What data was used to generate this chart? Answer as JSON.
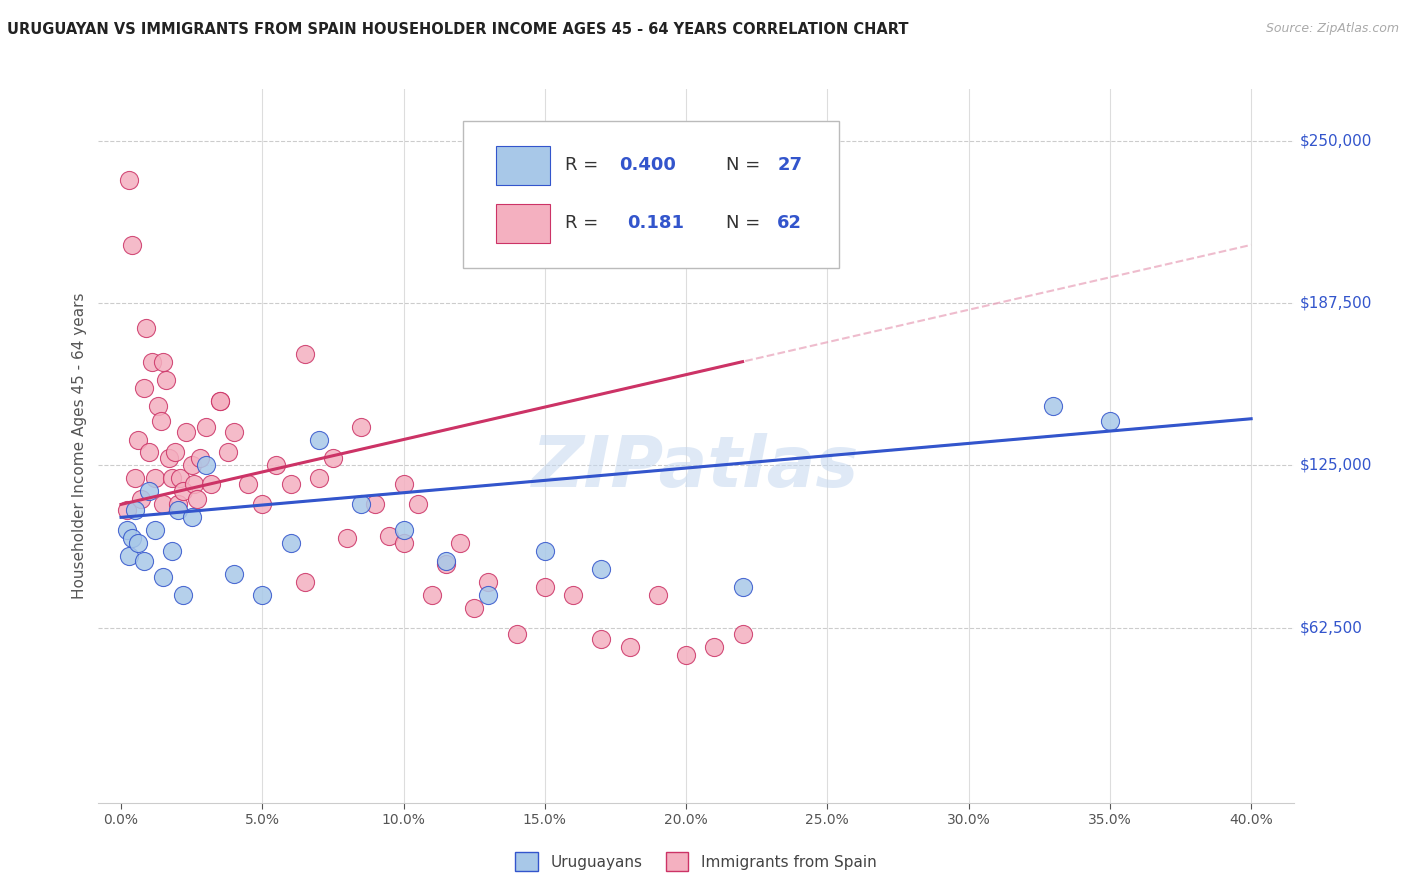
{
  "title": "URUGUAYAN VS IMMIGRANTS FROM SPAIN HOUSEHOLDER INCOME AGES 45 - 64 YEARS CORRELATION CHART",
  "source": "Source: ZipAtlas.com",
  "ylabel_label": "Householder Income Ages 45 - 64 years",
  "blue_color": "#a8c8e8",
  "pink_color": "#f4b0c0",
  "blue_line_color": "#3355cc",
  "pink_line_color": "#cc3366",
  "blue_dashed_color": "#aabbdd",
  "blue_r": "0.400",
  "blue_n": "27",
  "pink_r": "0.181",
  "pink_n": "62",
  "blue_intercept": 105000,
  "blue_slope": 950,
  "pink_intercept": 110000,
  "pink_slope": 2500,
  "uruguayan_x": [
    0.2,
    0.3,
    0.4,
    0.5,
    0.6,
    0.8,
    1.0,
    1.2,
    1.5,
    1.8,
    2.0,
    2.2,
    2.5,
    3.0,
    4.0,
    5.0,
    6.0,
    7.0,
    8.5,
    10.0,
    11.5,
    13.0,
    15.0,
    17.0,
    22.0,
    33.0,
    35.0
  ],
  "uruguayan_y": [
    100000,
    90000,
    97000,
    108000,
    95000,
    88000,
    115000,
    100000,
    82000,
    92000,
    108000,
    75000,
    105000,
    125000,
    83000,
    75000,
    95000,
    135000,
    110000,
    100000,
    88000,
    75000,
    92000,
    85000,
    78000,
    148000,
    142000
  ],
  "spain_x": [
    0.2,
    0.3,
    0.4,
    0.5,
    0.6,
    0.7,
    0.8,
    0.9,
    1.0,
    1.1,
    1.2,
    1.3,
    1.4,
    1.5,
    1.6,
    1.7,
    1.8,
    1.9,
    2.0,
    2.1,
    2.2,
    2.3,
    2.5,
    2.6,
    2.7,
    2.8,
    3.0,
    3.2,
    3.5,
    3.8,
    4.0,
    4.5,
    5.0,
    5.5,
    6.0,
    6.5,
    7.0,
    7.5,
    8.0,
    8.5,
    9.0,
    9.5,
    10.0,
    10.5,
    11.0,
    11.5,
    12.0,
    12.5,
    13.0,
    14.0,
    15.0,
    16.0,
    17.0,
    18.0,
    19.0,
    20.0,
    21.0,
    22.0,
    10.0,
    3.5,
    1.5,
    6.5
  ],
  "spain_y": [
    108000,
    235000,
    210000,
    120000,
    135000,
    112000,
    155000,
    178000,
    130000,
    165000,
    120000,
    148000,
    142000,
    110000,
    158000,
    128000,
    120000,
    130000,
    110000,
    120000,
    115000,
    138000,
    125000,
    118000,
    112000,
    128000,
    140000,
    118000,
    150000,
    130000,
    138000,
    118000,
    110000,
    125000,
    118000,
    168000,
    120000,
    128000,
    97000,
    140000,
    110000,
    98000,
    118000,
    110000,
    75000,
    87000,
    95000,
    70000,
    80000,
    60000,
    78000,
    75000,
    58000,
    55000,
    75000,
    52000,
    55000,
    60000,
    95000,
    150000,
    165000,
    80000
  ]
}
